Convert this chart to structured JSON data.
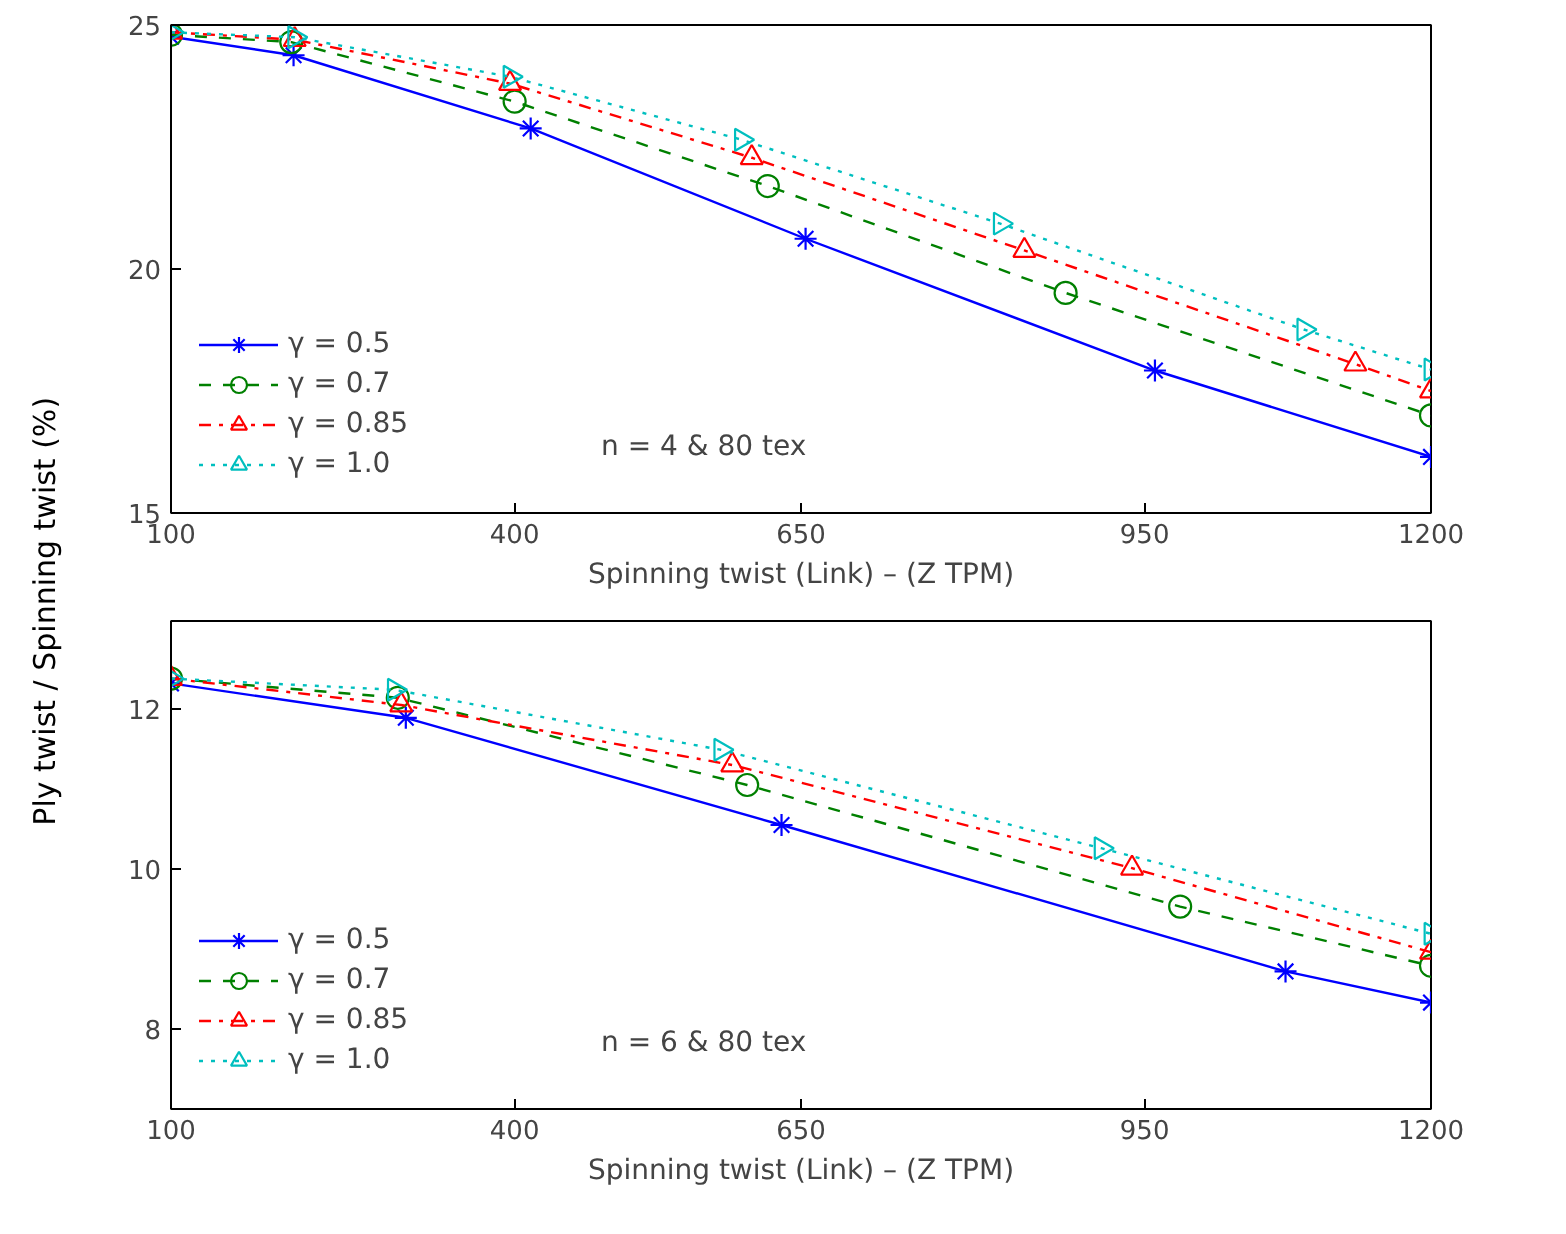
{
  "chart_data": [
    {
      "type": "line",
      "ylabel": "Ply twist  /  Spinning twist  (%)",
      "xlabel": "Spinning twist (Link) – (Z TPM)",
      "xlim": [
        100,
        1200
      ],
      "xticks": [
        100,
        400,
        650,
        950,
        1200
      ],
      "ylim": [
        15,
        25
      ],
      "yticks": [
        15,
        20,
        25
      ],
      "grid": false,
      "legend": "bottom left",
      "annotations": [
        "n = 4 & 80 tex"
      ],
      "series": [
        {
          "name": "γ = 0.5",
          "color": "#0000ff",
          "marker": "cross",
          "line_style": "solid",
          "x": [
            100,
            207,
            414,
            654,
            959,
            1200
          ],
          "values": [
            24.76,
            24.38,
            22.88,
            20.62,
            17.92,
            16.15
          ]
        },
        {
          "name": "γ = 0.7",
          "color": "#008000",
          "marker": "circle",
          "line_style": "dashed",
          "x": [
            100,
            205,
            400,
            621,
            881,
            1200
          ],
          "values": [
            24.8,
            24.65,
            23.43,
            21.7,
            19.51,
            17.0
          ]
        },
        {
          "name": "γ = 0.85",
          "color": "#ff0000",
          "marker": "triangle",
          "line_style": "dashdot",
          "x": [
            100,
            208,
            396,
            607,
            845,
            1134,
            1200
          ],
          "values": [
            24.85,
            24.7,
            23.8,
            22.28,
            20.38,
            18.05,
            17.5
          ]
        },
        {
          "name": "γ = 1.0",
          "color": "#00bfbf",
          "marker": "triangle_right",
          "line_style": "dotted",
          "x": [
            100,
            208,
            396,
            598,
            824,
            1089,
            1200
          ],
          "values": [
            24.85,
            24.75,
            23.94,
            22.65,
            20.93,
            18.76,
            17.94
          ]
        }
      ]
    },
    {
      "type": "line",
      "xlabel": "Spinning twist (Link) – (Z TPM)",
      "xlim": [
        100,
        1200
      ],
      "xticks": [
        100,
        400,
        650,
        950,
        1200
      ],
      "ylim": [
        7,
        13.1
      ],
      "yticks": [
        8,
        10,
        12
      ],
      "grid": false,
      "legend": "bottom left",
      "annotations": [
        "n = 6 & 80 tex"
      ],
      "series": [
        {
          "name": "γ = 0.5",
          "color": "#0000ff",
          "marker": "cross",
          "line_style": "solid",
          "x": [
            100,
            305,
            633,
            1073,
            1200
          ],
          "values": [
            12.32,
            11.89,
            10.55,
            8.72,
            8.33
          ]
        },
        {
          "name": "γ = 0.7",
          "color": "#008000",
          "marker": "circle",
          "line_style": "dashed",
          "x": [
            100,
            298,
            603,
            981,
            1200
          ],
          "values": [
            12.38,
            12.14,
            11.05,
            9.53,
            8.79
          ]
        },
        {
          "name": "γ = 0.85",
          "color": "#ff0000",
          "marker": "triangle",
          "line_style": "dashdot",
          "x": [
            100,
            301,
            590,
            939,
            1200
          ],
          "values": [
            12.38,
            12.05,
            11.3,
            10.01,
            8.96
          ]
        },
        {
          "name": "γ = 1.0",
          "color": "#00bfbf",
          "marker": "triangle_right",
          "line_style": "dotted",
          "x": [
            100,
            295,
            580,
            912,
            1200
          ],
          "values": [
            12.38,
            12.24,
            11.49,
            10.26,
            9.19
          ]
        }
      ]
    }
  ]
}
